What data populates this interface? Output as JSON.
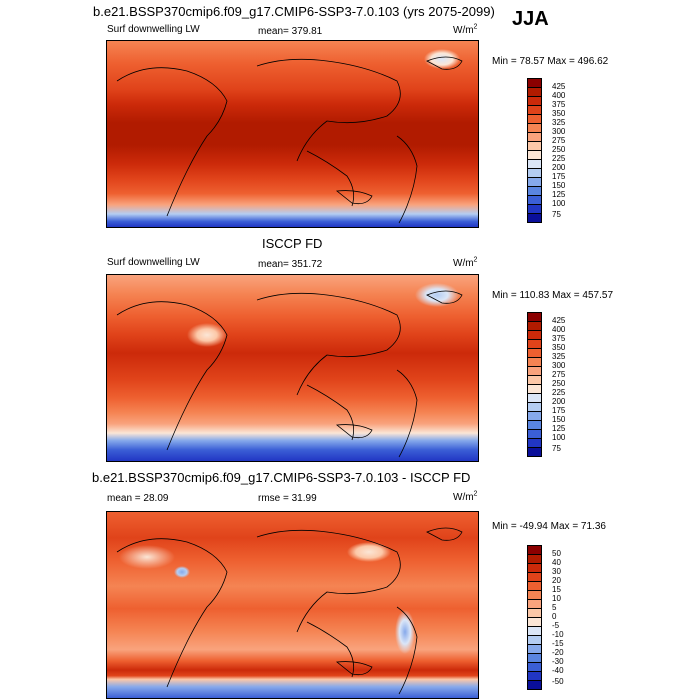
{
  "figure": {
    "title": "b.e21.BSSP370cmip6.f09_g17.CMIP6-SSP3-7.0.103 (yrs 2075-2099)",
    "season": "JJA"
  },
  "panels": [
    {
      "id": "model",
      "subtitle": "",
      "left_label": "Surf downwelling LW",
      "center_label": "mean= 379.81",
      "units_base": "W/m",
      "units_exp": "2",
      "range_label": "Min =  78.57 Max = 496.62",
      "colorbar": {
        "labels": [
          "425",
          "400",
          "375",
          "350",
          "325",
          "300",
          "275",
          "250",
          "225",
          "200",
          "175",
          "150",
          "125",
          "100",
          "75"
        ],
        "colors": [
          "#8b0000",
          "#b11b00",
          "#cc2a0a",
          "#e0431a",
          "#ee6030",
          "#f58453",
          "#f9a37d",
          "#fcc8a8",
          "#fbe6d6",
          "#dbe6f7",
          "#b4cdf2",
          "#86a9eb",
          "#5a85e0",
          "#3b5fd6",
          "#2136c4",
          "#0a0f9a"
        ]
      }
    },
    {
      "id": "obs",
      "subtitle": "ISCCP FD",
      "left_label": "Surf downwelling LW",
      "center_label": "mean= 351.72",
      "units_base": "W/m",
      "units_exp": "2",
      "range_label": "Min = 110.83 Max = 457.57",
      "colorbar": {
        "labels": [
          "425",
          "400",
          "375",
          "350",
          "325",
          "300",
          "275",
          "250",
          "225",
          "200",
          "175",
          "150",
          "125",
          "100",
          "75"
        ],
        "colors": [
          "#8b0000",
          "#b11b00",
          "#cc2a0a",
          "#e0431a",
          "#ee6030",
          "#f58453",
          "#f9a37d",
          "#fcc8a8",
          "#fbe6d6",
          "#dbe6f7",
          "#b4cdf2",
          "#86a9eb",
          "#5a85e0",
          "#3b5fd6",
          "#2136c4",
          "#0a0f9a"
        ]
      }
    },
    {
      "id": "diff",
      "subtitle": "b.e21.BSSP370cmip6.f09_g17.CMIP6-SSP3-7.0.103 - ISCCP FD",
      "left_label": "mean =  28.09",
      "center_label": "rmse =  31.99",
      "units_base": "W/m",
      "units_exp": "2",
      "range_label": "Min = -49.94 Max =  71.36",
      "colorbar": {
        "labels": [
          "50",
          "40",
          "30",
          "20",
          "15",
          "10",
          "5",
          "0",
          "-5",
          "-10",
          "-15",
          "-20",
          "-30",
          "-40",
          "-50"
        ],
        "colors": [
          "#8b0000",
          "#b11b00",
          "#cc2a0a",
          "#e0431a",
          "#ee6030",
          "#f58453",
          "#f9a37d",
          "#fcc8a8",
          "#fbe6d6",
          "#dbe6f7",
          "#b4cdf2",
          "#86a9eb",
          "#5a85e0",
          "#3b5fd6",
          "#2136c4",
          "#0a0f9a"
        ]
      }
    }
  ]
}
